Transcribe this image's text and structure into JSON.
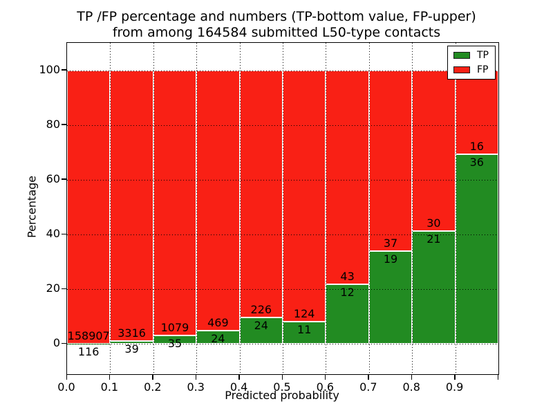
{
  "figure": {
    "title_line1": "TP /FP percentage and numbers (TP-bottom value, FP-upper)",
    "title_line2": "from among 164584 submitted L50-type contacts"
  },
  "chart_data": {
    "type": "bar",
    "stacked": true,
    "title": "TP /FP percentage and numbers (TP-bottom value, FP-upper) from among 164584 submitted L50-type contacts",
    "xlabel": "Predicted probability",
    "ylabel": "Percentage",
    "categories": [
      "0.0",
      "0.1",
      "0.2",
      "0.3",
      "0.4",
      "0.5",
      "0.6",
      "0.7",
      "0.8",
      "0.9"
    ],
    "bin_width": 0.1,
    "total_submitted": 164584,
    "series": [
      {
        "name": "TP",
        "color": "#228b22",
        "counts": [
          116,
          39,
          35,
          24,
          24,
          11,
          12,
          19,
          21,
          36
        ],
        "percent": [
          0.07,
          1.16,
          3.14,
          4.87,
          9.6,
          8.15,
          21.82,
          33.93,
          41.18,
          69.23
        ]
      },
      {
        "name": "FP",
        "color": "#f92015",
        "counts": [
          158907,
          3316,
          1079,
          469,
          226,
          124,
          43,
          37,
          30,
          16
        ],
        "percent": [
          99.93,
          98.84,
          96.86,
          95.13,
          90.4,
          91.85,
          78.18,
          66.07,
          58.82,
          30.77
        ]
      }
    ],
    "x_tick_labels": [
      "0.0",
      "0.1",
      "0.2",
      "0.3",
      "0.4",
      "0.5",
      "0.6",
      "0.7",
      "0.8",
      "0.9"
    ],
    "y_tick_labels": [
      "0",
      "20",
      "40",
      "60",
      "80",
      "100"
    ],
    "y_tick_values": [
      0,
      20,
      40,
      60,
      80,
      100
    ],
    "ylim": [
      -11,
      110
    ],
    "xlim": [
      0.0,
      1.0
    ],
    "grid": "dotted",
    "bar_edge_color": "#ffffff",
    "legend_position": "upper right"
  }
}
